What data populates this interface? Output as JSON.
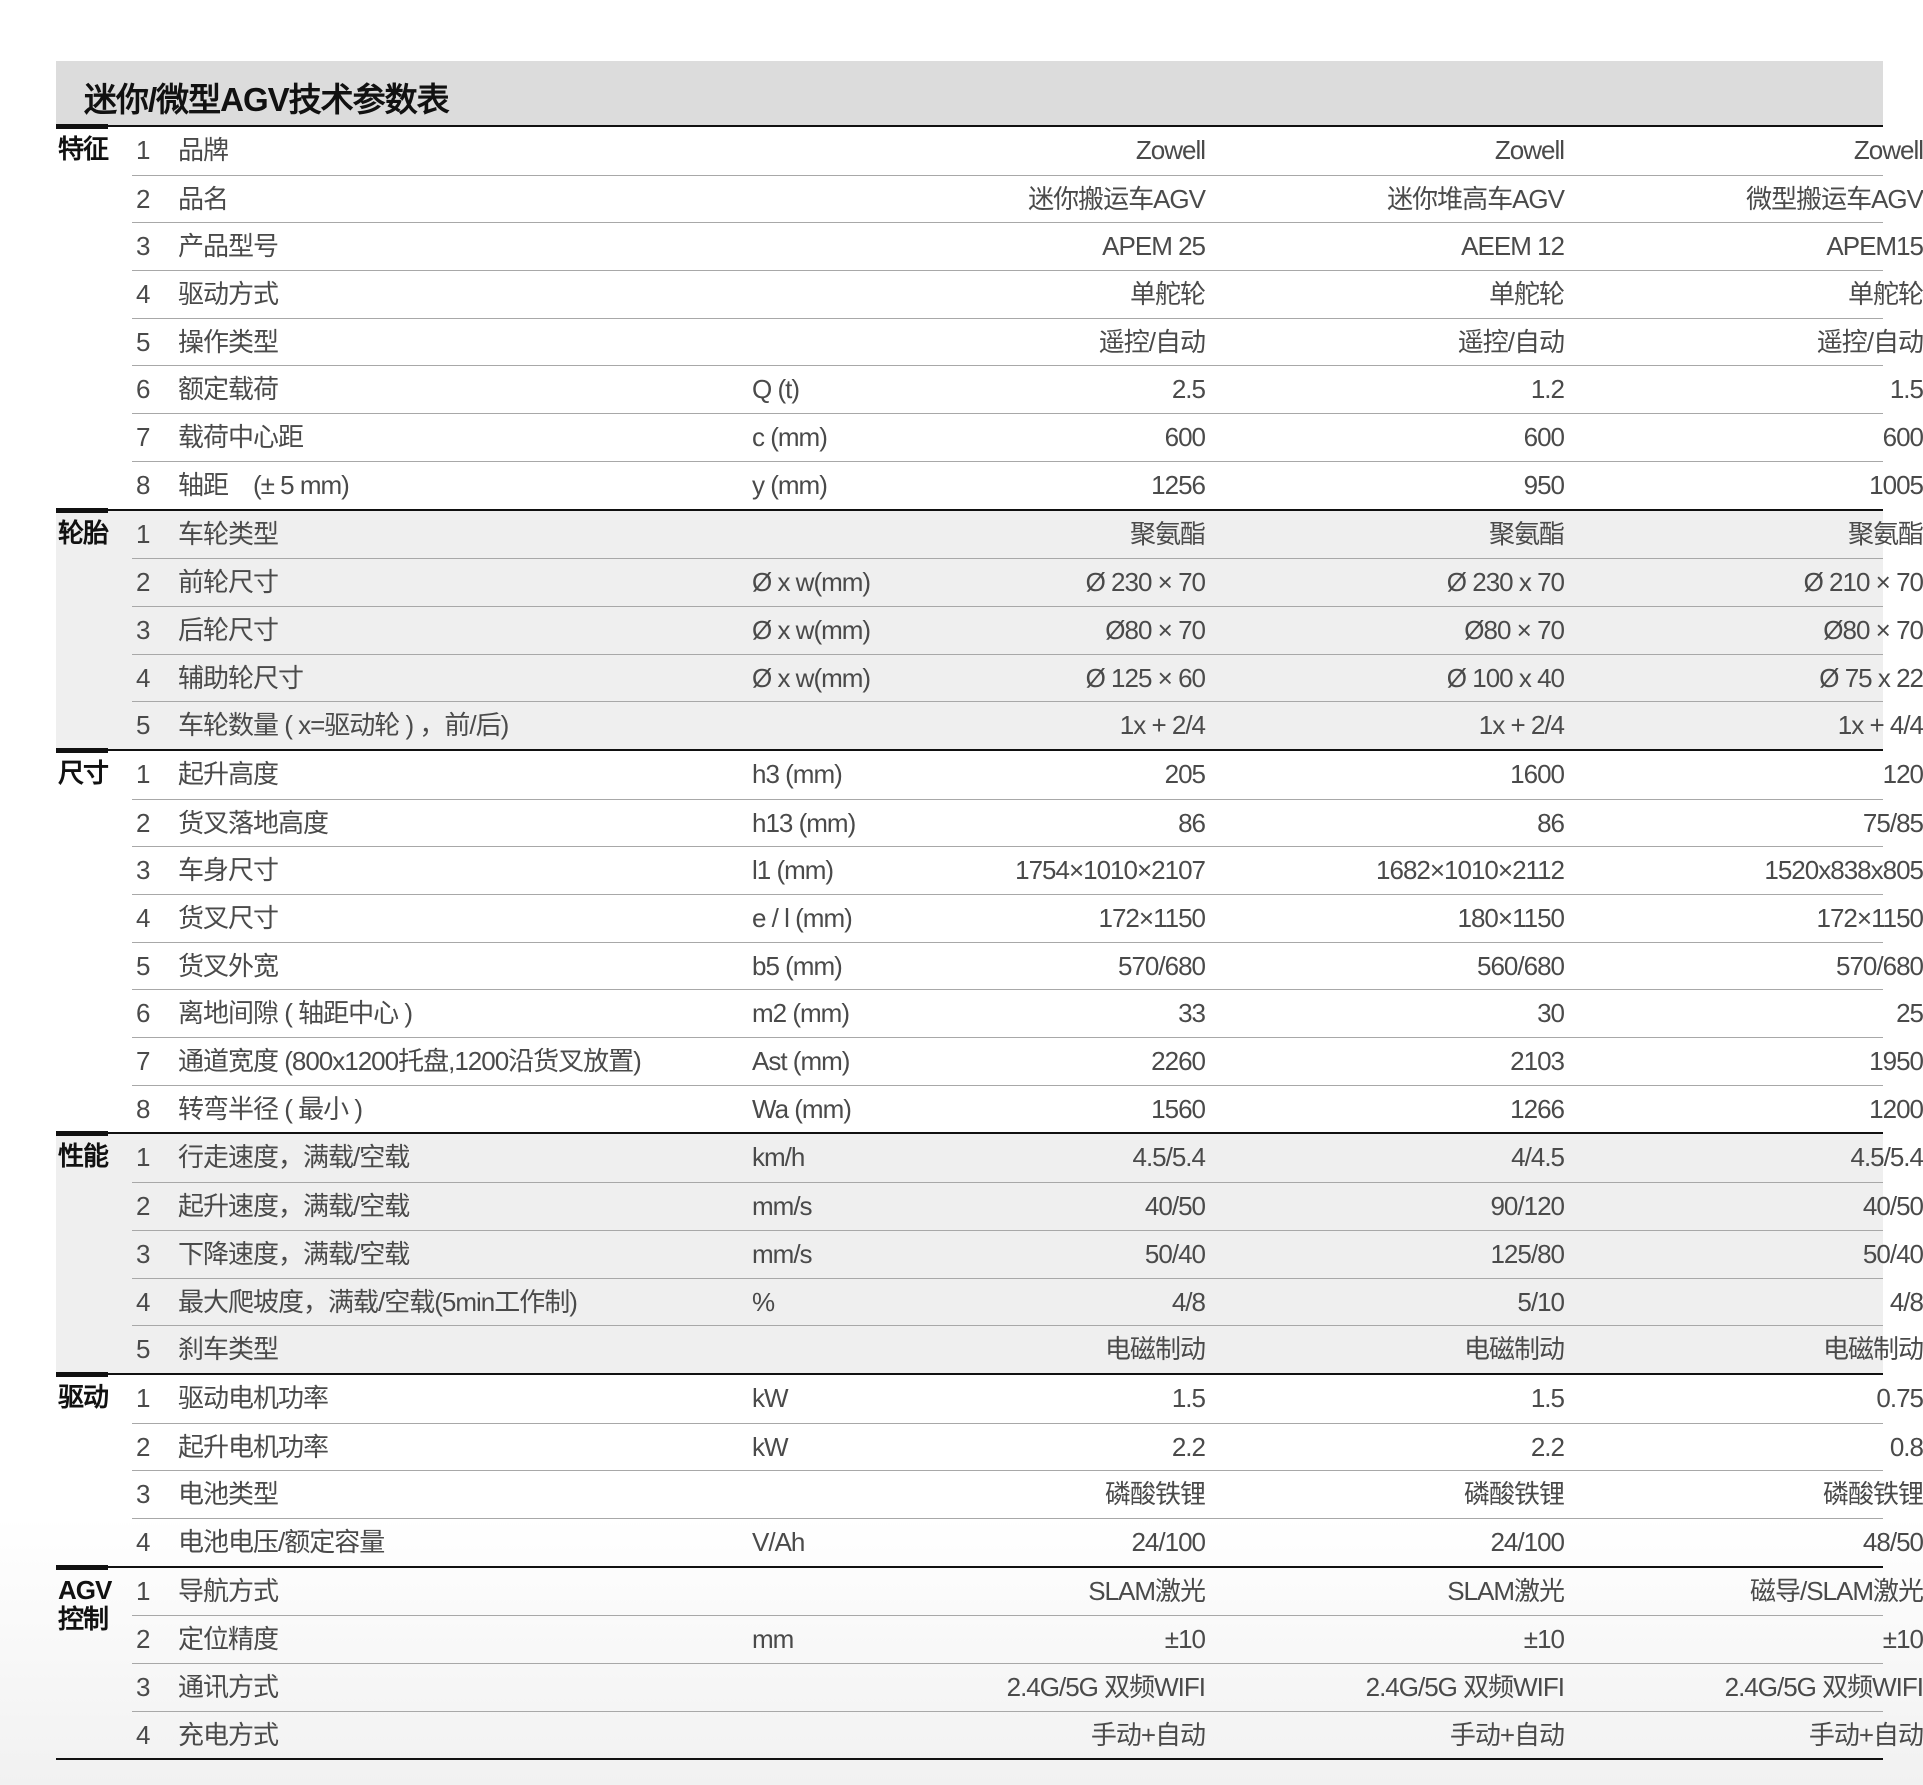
{
  "title": "迷你/微型AGV技术参数表",
  "sections": [
    {
      "category": "特征",
      "shaded": false,
      "rows": [
        {
          "num": "1",
          "label": "品牌",
          "unit": "",
          "values": [
            "Zowell",
            "Zowell",
            "Zowell"
          ]
        },
        {
          "num": "2",
          "label": "品名",
          "unit": "",
          "values": [
            "迷你搬运车AGV",
            "迷你堆高车AGV",
            "微型搬运车AGV"
          ]
        },
        {
          "num": "3",
          "label": "产品型号",
          "unit": "",
          "values": [
            "APEM 25",
            "AEEM 12",
            "APEM15"
          ]
        },
        {
          "num": "4",
          "label": "驱动方式",
          "unit": "",
          "values": [
            "单舵轮",
            "单舵轮",
            "单舵轮"
          ]
        },
        {
          "num": "5",
          "label": "操作类型",
          "unit": "",
          "values": [
            "遥控/自动",
            "遥控/自动",
            "遥控/自动"
          ]
        },
        {
          "num": "6",
          "label": "额定载荷",
          "unit": "Q (t)",
          "values": [
            "2.5",
            "1.2",
            "1.5"
          ]
        },
        {
          "num": "7",
          "label": "载荷中心距",
          "unit": "c (mm)",
          "values": [
            "600",
            "600",
            "600"
          ]
        },
        {
          "num": "8",
          "label": "轴距　(± 5 mm)",
          "unit": "y (mm)",
          "values": [
            "1256",
            "950",
            "1005"
          ]
        }
      ]
    },
    {
      "category": "轮胎",
      "shaded": true,
      "rows": [
        {
          "num": "1",
          "label": "车轮类型",
          "unit": "",
          "values": [
            "聚氨酯",
            "聚氨酯",
            "聚氨酯"
          ]
        },
        {
          "num": "2",
          "label": "前轮尺寸",
          "unit": "Ø x w(mm)",
          "values": [
            "Ø 230 × 70",
            "Ø 230 x 70",
            "Ø 210 × 70"
          ]
        },
        {
          "num": "3",
          "label": "后轮尺寸",
          "unit": "Ø x w(mm)",
          "values": [
            "Ø80 × 70",
            "Ø80 × 70",
            "Ø80 × 70"
          ]
        },
        {
          "num": "4",
          "label": "辅助轮尺寸",
          "unit": "Ø x w(mm)",
          "values": [
            "Ø 125 × 60",
            "Ø 100 x 40",
            "Ø 75 x 22"
          ]
        },
        {
          "num": "5",
          "label": "车轮数量 ( x=驱动轮 ) ，前/后)",
          "unit": "",
          "values": [
            "1x + 2/4",
            "1x + 2/4",
            "1x + 4/4"
          ]
        }
      ]
    },
    {
      "category": "尺寸",
      "shaded": false,
      "rows": [
        {
          "num": "1",
          "label": "起升高度",
          "unit": "h3 (mm)",
          "values": [
            "205",
            "1600",
            "120"
          ]
        },
        {
          "num": "2",
          "label": "货叉落地高度",
          "unit": "h13 (mm)",
          "values": [
            "86",
            "86",
            "75/85"
          ]
        },
        {
          "num": "3",
          "label": "车身尺寸",
          "unit": "l1 (mm)",
          "values": [
            "1754×1010×2107",
            "1682×1010×2112",
            "1520x838x805"
          ]
        },
        {
          "num": "4",
          "label": "货叉尺寸",
          "unit": "e / l (mm)",
          "values": [
            "172×1150",
            "180×1150",
            "172×1150"
          ]
        },
        {
          "num": "5",
          "label": "货叉外宽",
          "unit": "b5 (mm)",
          "values": [
            "570/680",
            "560/680",
            "570/680"
          ]
        },
        {
          "num": "6",
          "label": "离地间隙 ( 轴距中心 )",
          "unit": "m2 (mm)",
          "values": [
            "33",
            "30",
            "25"
          ]
        },
        {
          "num": "7",
          "label": "通道宽度 (800x1200托盘,1200沿货叉放置)",
          "unit": "Ast (mm)",
          "values": [
            "2260",
            "2103",
            "1950"
          ]
        },
        {
          "num": "8",
          "label": "转弯半径 ( 最小 )",
          "unit": "Wa (mm)",
          "values": [
            "1560",
            "1266",
            "1200"
          ]
        }
      ]
    },
    {
      "category": "性能",
      "shaded": true,
      "rows": [
        {
          "num": "1",
          "label": "行走速度，满载/空载",
          "unit": "km/h",
          "values": [
            "4.5/5.4",
            "4/4.5",
            "4.5/5.4"
          ]
        },
        {
          "num": "2",
          "label": "起升速度，满载/空载",
          "unit": "mm/s",
          "values": [
            "40/50",
            "90/120",
            "40/50"
          ]
        },
        {
          "num": "3",
          "label": "下降速度，满载/空载",
          "unit": "mm/s",
          "values": [
            "50/40",
            "125/80",
            "50/40"
          ]
        },
        {
          "num": "4",
          "label": "最大爬坡度，满载/空载(5min工作制)",
          "unit": "%",
          "values": [
            "4/8",
            "5/10",
            "4/8"
          ]
        },
        {
          "num": "5",
          "label": "刹车类型",
          "unit": "",
          "values": [
            "电磁制动",
            "电磁制动",
            "电磁制动"
          ]
        }
      ]
    },
    {
      "category": "驱动",
      "shaded": false,
      "rows": [
        {
          "num": "1",
          "label": "驱动电机功率",
          "unit": "kW",
          "values": [
            "1.5",
            "1.5",
            "0.75"
          ]
        },
        {
          "num": "2",
          "label": "起升电机功率",
          "unit": "kW",
          "values": [
            "2.2",
            "2.2",
            "0.8"
          ]
        },
        {
          "num": "3",
          "label": "电池类型",
          "unit": "",
          "values": [
            "磷酸铁锂",
            "磷酸铁锂",
            "磷酸铁锂"
          ]
        },
        {
          "num": "4",
          "label": "电池电压/额定容量",
          "unit": "V/Ah",
          "values": [
            "24/100",
            "24/100",
            "48/50"
          ]
        }
      ]
    },
    {
      "category": "AGV\n控制",
      "shaded": false,
      "rows": [
        {
          "num": "1",
          "label": "导航方式",
          "unit": "",
          "values": [
            "SLAM激光",
            "SLAM激光",
            "磁导/SLAM激光"
          ]
        },
        {
          "num": "2",
          "label": "定位精度",
          "unit": "mm",
          "values": [
            "±10",
            "±10",
            "±10"
          ]
        },
        {
          "num": "3",
          "label": "通讯方式",
          "unit": "",
          "values": [
            "2.4G/5G 双频WIFI",
            "2.4G/5G 双频WIFI",
            "2.4G/5G 双频WIFI"
          ]
        },
        {
          "num": "4",
          "label": "充电方式",
          "unit": "",
          "values": [
            "手动+自动",
            "手动+自动",
            "手动+自动"
          ]
        }
      ]
    }
  ]
}
